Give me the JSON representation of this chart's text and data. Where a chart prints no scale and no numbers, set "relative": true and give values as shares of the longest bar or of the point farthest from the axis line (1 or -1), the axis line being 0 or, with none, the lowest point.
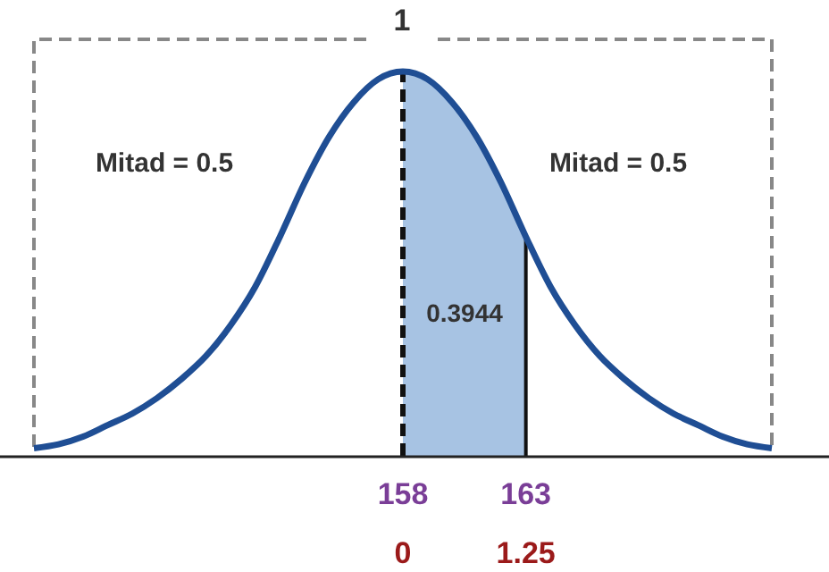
{
  "chart_data": {
    "type": "line",
    "relative": true,
    "annotations": [
      "1",
      "Mitad = 0.5",
      "Mitad = 0.5",
      "0.3944"
    ],
    "xlim": [
      143,
      173
    ],
    "xticks": [
      158,
      163
    ],
    "x2lim": [
      -3.75,
      3.75
    ],
    "x2ticks": [
      0,
      1.25
    ],
    "series": [
      {
        "type": "area",
        "color": "#a7c3e3",
        "x": [
          158,
          159,
          160,
          161,
          162,
          163
        ],
        "values": [
          1,
          0.98,
          0.92,
          0.83,
          0.71,
          0.57
        ]
      },
      {
        "color": "#1f4e94",
        "x": [
          143,
          144,
          145,
          146,
          147,
          148,
          149,
          150,
          151,
          152,
          153,
          154,
          155,
          156,
          157,
          158,
          159,
          160,
          161,
          162,
          163,
          164,
          165,
          166,
          167,
          168,
          169,
          170,
          171,
          172,
          173
        ],
        "values": [
          0.02,
          0.03,
          0.05,
          0.08,
          0.11,
          0.15,
          0.2,
          0.26,
          0.34,
          0.44,
          0.57,
          0.71,
          0.83,
          0.92,
          0.98,
          1,
          0.98,
          0.92,
          0.83,
          0.71,
          0.57,
          0.44,
          0.34,
          0.26,
          0.2,
          0.15,
          0.11,
          0.08,
          0.05,
          0.03,
          0.02
        ]
      }
    ],
    "ref_lines": [
      {
        "axis": "x",
        "value": 158,
        "color": "#111111",
        "line_style": "dashed"
      },
      {
        "axis": "x",
        "value": 163,
        "color": "#111111",
        "line_style": "solid"
      }
    ],
    "grid": false
  }
}
